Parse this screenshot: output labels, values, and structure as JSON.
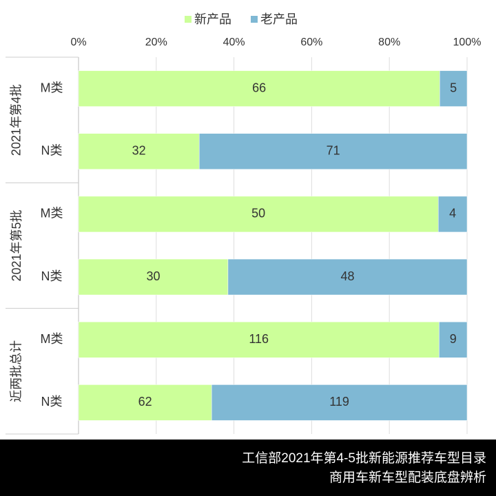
{
  "chart_data": {
    "type": "stacked-percent-bar",
    "groups": [
      "2021年第4批",
      "2021年第5批",
      "近两批总计"
    ],
    "categories": [
      "M类",
      "N类",
      "M类",
      "N类",
      "M类",
      "N类"
    ],
    "series": [
      {
        "name": "新产品",
        "color": "#ccff99",
        "values": [
          66,
          32,
          50,
          30,
          116,
          62
        ]
      },
      {
        "name": "老产品",
        "color": "#7fb8d4",
        "values": [
          5,
          71,
          4,
          48,
          9,
          119
        ]
      }
    ],
    "xlim": [
      0,
      100
    ],
    "xticks": [
      {
        "value": 0,
        "label": "0%"
      },
      {
        "value": 20,
        "label": "20%"
      },
      {
        "value": 40,
        "label": "40%"
      },
      {
        "value": 60,
        "label": "60%"
      },
      {
        "value": 80,
        "label": "80%"
      },
      {
        "value": 100,
        "label": "100%"
      }
    ],
    "grid": true,
    "legend": "top",
    "footer": [
      "工信部2021年第4-5批新能源推荐车型目录",
      "商用车新车型配装底盘辨析"
    ]
  }
}
